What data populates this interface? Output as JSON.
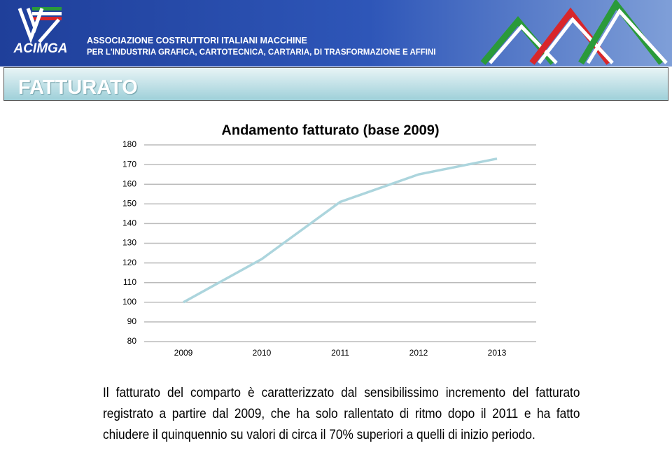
{
  "header": {
    "logo": "ACIMGA",
    "line1": "ASSOCIAZIONE COSTRUTTORI ITALIANI MACCHINE",
    "line2": "PER L'INDUSTRIA GRAFICA, CARTOTECNICA, CARTARIA, DI TRASFORMAZIONE E AFFINI"
  },
  "section_title": "FATTURATO",
  "chart_data": {
    "type": "line",
    "title": "Andamento fatturato (base 2009)",
    "categories": [
      "2009",
      "2010",
      "2011",
      "2012",
      "2013"
    ],
    "values": [
      100,
      122,
      151,
      165,
      173
    ],
    "color": "#acd5dd",
    "ylim": [
      80,
      180
    ],
    "yticks": [
      80,
      90,
      100,
      110,
      120,
      130,
      140,
      150,
      160,
      170,
      180
    ],
    "grid": true
  },
  "paragraph": "Il fatturato del comparto è caratterizzato dal sensibilissimo incremento del fatturato registrato a partire dal 2009, che ha solo rallentato di ritmo dopo il 2011 e ha fatto chiudere il quinquennio su valori di circa il 70% superiori a quelli di inizio periodo."
}
